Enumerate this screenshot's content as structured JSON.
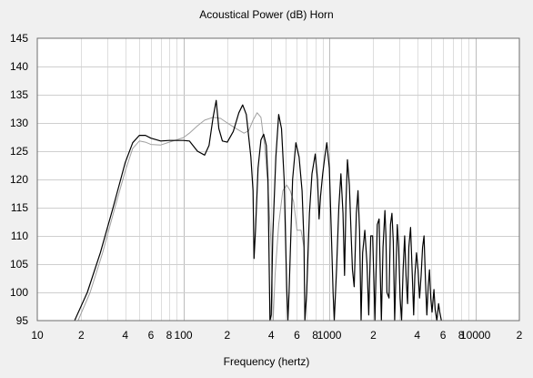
{
  "chart_data": {
    "type": "line",
    "title": "Acoustical Power (dB)    Horn",
    "xlabel": "Frequency (hertz)",
    "ylabel": "",
    "xscale": "log",
    "xlim": [
      10,
      20000
    ],
    "ylim": [
      95,
      145
    ],
    "grid": true,
    "x_tick_labels": [
      {
        "value": 10,
        "label": "10"
      },
      {
        "value": 20,
        "label": "2"
      },
      {
        "value": 40,
        "label": "4"
      },
      {
        "value": 60,
        "label": "6"
      },
      {
        "value": 80,
        "label": "8"
      },
      {
        "value": 100,
        "label": "100"
      },
      {
        "value": 200,
        "label": "2"
      },
      {
        "value": 400,
        "label": "4"
      },
      {
        "value": 600,
        "label": "6"
      },
      {
        "value": 800,
        "label": "8"
      },
      {
        "value": 1000,
        "label": "1000"
      },
      {
        "value": 2000,
        "label": "2"
      },
      {
        "value": 4000,
        "label": "4"
      },
      {
        "value": 6000,
        "label": "6"
      },
      {
        "value": 8000,
        "label": "8"
      },
      {
        "value": 10000,
        "label": "10000"
      },
      {
        "value": 20000,
        "label": "2"
      }
    ],
    "y_ticks": [
      95,
      100,
      105,
      110,
      115,
      120,
      125,
      130,
      135,
      140,
      145
    ],
    "series": [
      {
        "color": "#000000",
        "points": [
          [
            18,
            95
          ],
          [
            22,
            100
          ],
          [
            27,
            107
          ],
          [
            33,
            115
          ],
          [
            40,
            123
          ],
          [
            45,
            126.5
          ],
          [
            50,
            127.8
          ],
          [
            55,
            127.8
          ],
          [
            60,
            127.3
          ],
          [
            70,
            126.8
          ],
          [
            80,
            126.9
          ],
          [
            100,
            126.9
          ],
          [
            110,
            126.8
          ],
          [
            125,
            125
          ],
          [
            140,
            124.3
          ],
          [
            150,
            126
          ],
          [
            160,
            131
          ],
          [
            168,
            134
          ],
          [
            175,
            129
          ],
          [
            185,
            126.8
          ],
          [
            200,
            126.6
          ],
          [
            220,
            128.5
          ],
          [
            240,
            131.8
          ],
          [
            255,
            133.2
          ],
          [
            270,
            131.5
          ],
          [
            290,
            124
          ],
          [
            300,
            118
          ],
          [
            305,
            106
          ],
          [
            312,
            111
          ],
          [
            325,
            122
          ],
          [
            340,
            127
          ],
          [
            355,
            128
          ],
          [
            370,
            126
          ],
          [
            380,
            120
          ],
          [
            392,
            95
          ],
          [
            400,
            96
          ],
          [
            410,
            110
          ],
          [
            430,
            124
          ],
          [
            450,
            131.5
          ],
          [
            470,
            129
          ],
          [
            490,
            120
          ],
          [
            510,
            101
          ],
          [
            520,
            95
          ],
          [
            530,
            100
          ],
          [
            560,
            120
          ],
          [
            590,
            126.5
          ],
          [
            620,
            124
          ],
          [
            650,
            118
          ],
          [
            670,
            109
          ],
          [
            680,
            95
          ],
          [
            700,
            100
          ],
          [
            730,
            114
          ],
          [
            760,
            121
          ],
          [
            800,
            124.5
          ],
          [
            830,
            120
          ],
          [
            850,
            113
          ],
          [
            870,
            117
          ],
          [
            900,
            121
          ],
          [
            930,
            124
          ],
          [
            960,
            126.5
          ],
          [
            1000,
            122
          ],
          [
            1030,
            111
          ],
          [
            1060,
            100
          ],
          [
            1080,
            95
          ],
          [
            1120,
            104
          ],
          [
            1160,
            115
          ],
          [
            1200,
            121
          ],
          [
            1240,
            114
          ],
          [
            1270,
            103
          ],
          [
            1300,
            116
          ],
          [
            1330,
            123.5
          ],
          [
            1370,
            119
          ],
          [
            1410,
            110
          ],
          [
            1440,
            104
          ],
          [
            1480,
            101
          ],
          [
            1530,
            114
          ],
          [
            1570,
            118
          ],
          [
            1610,
            111
          ],
          [
            1650,
            95
          ],
          [
            1690,
            107
          ],
          [
            1750,
            111
          ],
          [
            1810,
            105
          ],
          [
            1860,
            96
          ],
          [
            1920,
            110
          ],
          [
            1980,
            110
          ],
          [
            2020,
            102
          ],
          [
            2050,
            95
          ],
          [
            2080,
            102
          ],
          [
            2130,
            112
          ],
          [
            2190,
            113
          ],
          [
            2230,
            104
          ],
          [
            2270,
            95
          ],
          [
            2330,
            108
          ],
          [
            2400,
            114.5
          ],
          [
            2440,
            110
          ],
          [
            2480,
            100
          ],
          [
            2560,
            99
          ],
          [
            2620,
            112
          ],
          [
            2680,
            114
          ],
          [
            2740,
            109
          ],
          [
            2800,
            95
          ],
          [
            2860,
            104
          ],
          [
            2920,
            112
          ],
          [
            2980,
            108
          ],
          [
            3050,
            99
          ],
          [
            3120,
            95
          ],
          [
            3200,
            104
          ],
          [
            3280,
            110
          ],
          [
            3350,
            103
          ],
          [
            3430,
            98
          ],
          [
            3500,
            108
          ],
          [
            3600,
            111.5
          ],
          [
            3700,
            103
          ],
          [
            3780,
            96
          ],
          [
            3850,
            103
          ],
          [
            3950,
            107
          ],
          [
            4050,
            104
          ],
          [
            4150,
            99
          ],
          [
            4250,
            103
          ],
          [
            4350,
            108
          ],
          [
            4450,
            110
          ],
          [
            4550,
            102
          ],
          [
            4650,
            96
          ],
          [
            4750,
            101
          ],
          [
            4850,
            104
          ],
          [
            4950,
            99
          ],
          [
            5050,
            96.5
          ],
          [
            5200,
            100.5
          ],
          [
            5300,
            97
          ],
          [
            5450,
            95
          ],
          [
            5600,
            98
          ],
          [
            5700,
            96.5
          ],
          [
            5850,
            95
          ]
        ]
      },
      {
        "color": "#a0a0a0",
        "points": [
          [
            19,
            95
          ],
          [
            23,
            100
          ],
          [
            28,
            107
          ],
          [
            34,
            115
          ],
          [
            40,
            121.5
          ],
          [
            45,
            125.5
          ],
          [
            50,
            126.8
          ],
          [
            55,
            126.6
          ],
          [
            60,
            126.2
          ],
          [
            70,
            126.1
          ],
          [
            80,
            126.6
          ],
          [
            100,
            127.4
          ],
          [
            110,
            128.2
          ],
          [
            125,
            129.5
          ],
          [
            140,
            130.5
          ],
          [
            160,
            131
          ],
          [
            180,
            130.8
          ],
          [
            200,
            130
          ],
          [
            230,
            129
          ],
          [
            260,
            128.2
          ],
          [
            280,
            128.6
          ],
          [
            300,
            130.5
          ],
          [
            320,
            131.8
          ],
          [
            340,
            131
          ],
          [
            360,
            126
          ],
          [
            380,
            119
          ],
          [
            400,
            108
          ],
          [
            412,
            95
          ],
          [
            425,
            103
          ],
          [
            450,
            112
          ],
          [
            480,
            118
          ],
          [
            510,
            119
          ],
          [
            540,
            118
          ],
          [
            570,
            116
          ],
          [
            600,
            111
          ],
          [
            640,
            111
          ],
          [
            670,
            108
          ]
        ]
      }
    ]
  }
}
